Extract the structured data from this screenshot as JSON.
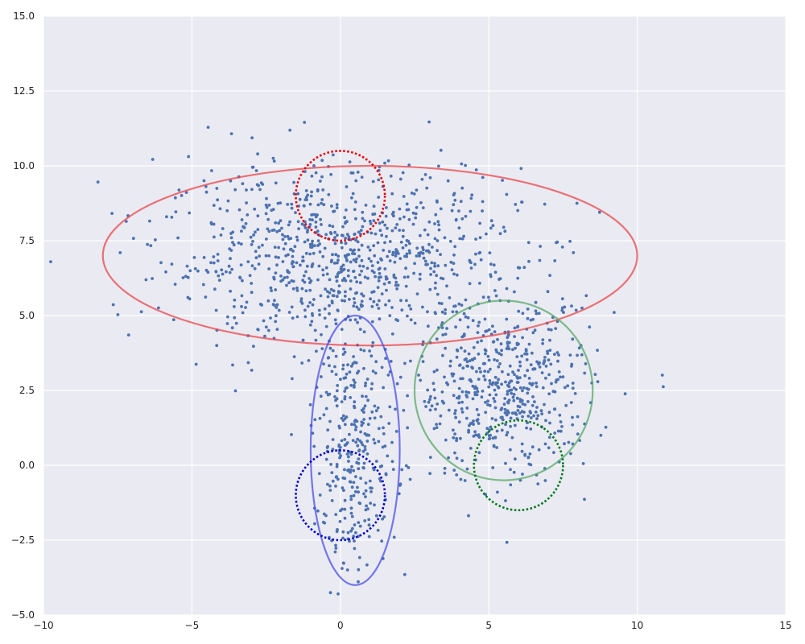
{
  "chart_data": {
    "type": "scatter",
    "title": "",
    "xlabel": "",
    "ylabel": "",
    "xlim": [
      -10,
      15
    ],
    "ylim": [
      -5,
      15
    ],
    "grid": true,
    "x_ticks": [
      -10,
      -5,
      0,
      5,
      10,
      15
    ],
    "x_tick_labels": [
      "−10",
      "−5",
      "0",
      "5",
      "10",
      "15"
    ],
    "y_ticks": [
      -5,
      -2.5,
      0,
      2.5,
      5,
      7.5,
      10,
      12.5,
      15
    ],
    "y_tick_labels": [
      "−5.0",
      "−2.5",
      "0.0",
      "2.5",
      "5.0",
      "7.5",
      "10.0",
      "12.5",
      "15.0"
    ],
    "colors": {
      "background": "#eaeaf2",
      "grid": "#ffffff",
      "points": "#4c72b0",
      "red": "#e8474c",
      "blue": "#4b4fe6",
      "green": "#55a868",
      "red_dotted": "#e8000b",
      "blue_dotted": "#0000cc",
      "green_dotted": "#007a1f"
    },
    "clusters": [
      {
        "center": [
          0,
          7
        ],
        "std": [
          3.0,
          1.5
        ],
        "count": 900
      },
      {
        "center": [
          5.5,
          2.5
        ],
        "std": [
          1.5,
          1.5
        ],
        "count": 550
      },
      {
        "center": [
          0.5,
          0.5
        ],
        "std": [
          0.7,
          2.0
        ],
        "count": 320
      }
    ],
    "ellipses": [
      {
        "cx": 1,
        "cy": 7,
        "rx": 9,
        "ry": 3,
        "style": "solid",
        "color": "red"
      },
      {
        "cx": 0.5,
        "cy": 0.5,
        "rx": 1.5,
        "ry": 4.5,
        "style": "solid",
        "color": "blue"
      },
      {
        "cx": 5.5,
        "cy": 2.5,
        "rx": 3,
        "ry": 3,
        "style": "solid",
        "color": "green"
      },
      {
        "cx": 0,
        "cy": 9,
        "rx": 1.5,
        "ry": 1.5,
        "style": "dotted",
        "color": "red_dotted"
      },
      {
        "cx": 0,
        "cy": -1,
        "rx": 1.5,
        "ry": 1.5,
        "style": "dotted",
        "color": "blue_dotted"
      },
      {
        "cx": 6,
        "cy": 0,
        "rx": 1.5,
        "ry": 1.5,
        "style": "dotted",
        "color": "green_dotted"
      }
    ]
  }
}
